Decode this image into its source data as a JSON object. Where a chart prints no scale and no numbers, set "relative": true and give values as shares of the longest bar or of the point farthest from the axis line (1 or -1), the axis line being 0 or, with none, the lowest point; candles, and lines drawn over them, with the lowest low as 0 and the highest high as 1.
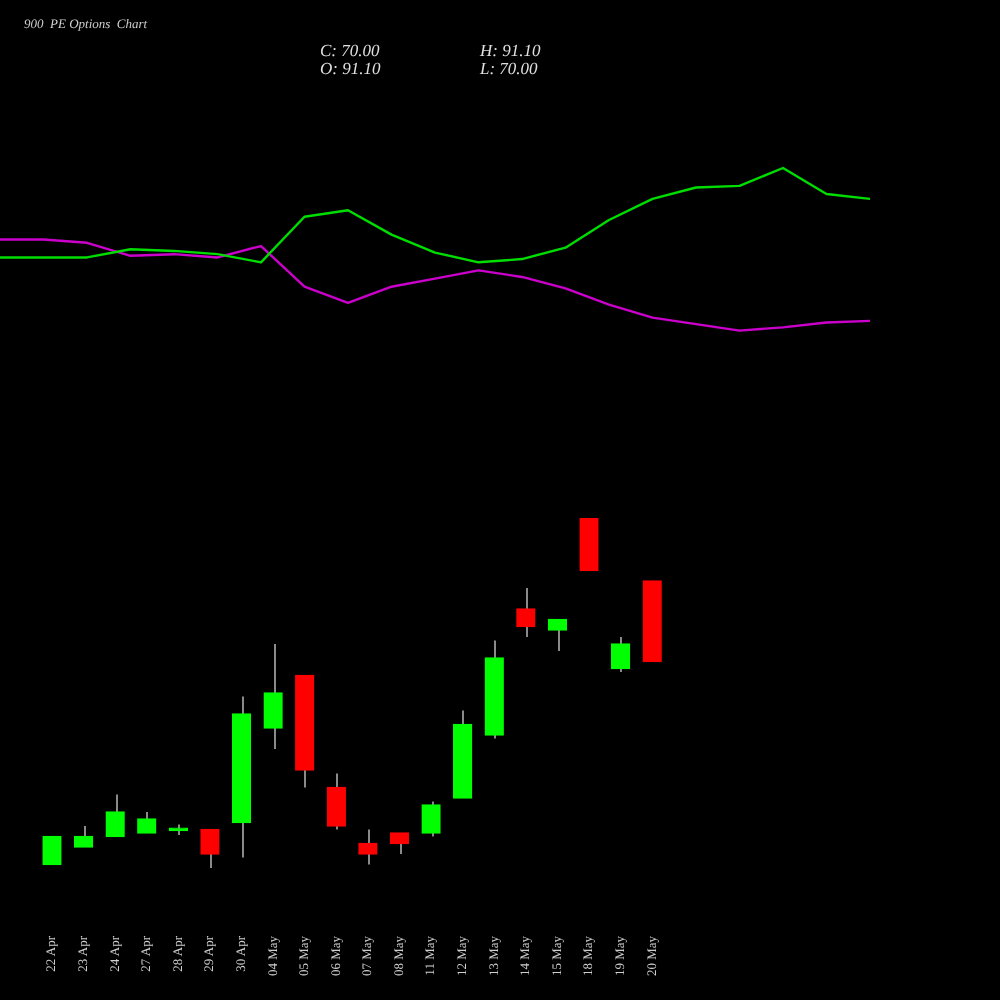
{
  "chart_data": [
    {
      "type": "line",
      "title": "900  PE Options  Chart",
      "annotations": [
        "C: 70.00",
        "H: 91.10",
        "O: 91.10",
        "L: 70.00"
      ],
      "relative": true,
      "tick_labels": false,
      "categories": [
        null,
        null,
        null,
        null,
        null,
        null,
        null,
        null,
        null,
        null,
        null,
        null,
        null,
        null,
        null,
        null,
        null,
        null,
        null,
        null,
        null
      ],
      "series": [
        {
          "color": "#00dd00",
          "values": [
            0.45,
            0.45,
            0.45,
            0.5,
            0.49,
            0.47,
            0.42,
            0.7,
            0.74,
            0.59,
            0.48,
            0.42,
            0.44,
            0.51,
            0.68,
            0.81,
            0.88,
            0.89,
            1,
            0.84,
            0.81
          ]
        },
        {
          "color": "#cc00cc",
          "values": [
            0.56,
            0.56,
            0.54,
            0.46,
            0.47,
            0.45,
            0.52,
            0.27,
            0.17,
            0.27,
            0.32,
            0.37,
            0.33,
            0.26,
            0.16,
            0.08,
            0.04,
            0,
            0.02,
            0.05,
            0.06
          ]
        }
      ]
    },
    {
      "type": "candlestick",
      "relative": true,
      "categories": [
        "22 Apr",
        "23 Apr",
        "24 Apr",
        "27 Apr",
        "28 Apr",
        "29 Apr",
        "30 Apr",
        "04 May",
        "05 May",
        "06 May",
        "07 May",
        "08 May",
        "11 May",
        "12 May",
        "13 May",
        "14 May",
        "15 May",
        "18 May",
        "19 May",
        "20 May"
      ],
      "ohlc": [
        [
          0.01,
          0.09,
          0.01,
          0.09
        ],
        [
          0.06,
          0.12,
          0.06,
          0.09
        ],
        [
          0.09,
          0.21,
          0.09,
          0.16
        ],
        [
          0.1,
          0.16,
          0.1,
          0.14
        ],
        [
          0.107,
          0.124,
          0.094,
          0.114
        ],
        [
          0.11,
          0.11,
          0,
          0.04
        ],
        [
          0.13,
          0.49,
          0.03,
          0.44
        ],
        [
          0.4,
          0.64,
          0.34,
          0.5
        ],
        [
          0.55,
          0.55,
          0.23,
          0.28
        ],
        [
          0.23,
          0.27,
          0.11,
          0.12
        ],
        [
          0.07,
          0.11,
          0.01,
          0.04
        ],
        [
          0.1,
          0.1,
          0.04,
          0.07
        ],
        [
          0.1,
          0.19,
          0.09,
          0.18
        ],
        [
          0.2,
          0.45,
          0.2,
          0.41
        ],
        [
          0.38,
          0.65,
          0.37,
          0.6
        ],
        [
          0.74,
          0.8,
          0.66,
          0.69
        ],
        [
          0.68,
          0.71,
          0.62,
          0.71
        ],
        [
          1,
          1,
          0.85,
          0.85
        ],
        [
          0.57,
          0.66,
          0.56,
          0.64
        ],
        [
          0.82,
          0.82,
          0.59,
          0.59
        ]
      ],
      "colors": [
        "#00ff00",
        "#00ff00",
        "#00ff00",
        "#00ff00",
        "#00ff00",
        "#ff0000",
        "#00ff00",
        "#00ff00",
        "#ff0000",
        "#ff0000",
        "#ff0000",
        "#ff0000",
        "#00ff00",
        "#00ff00",
        "#00ff00",
        "#ff0000",
        "#00ff00",
        "#ff0000",
        "#00ff00",
        "#ff0000"
      ]
    }
  ]
}
